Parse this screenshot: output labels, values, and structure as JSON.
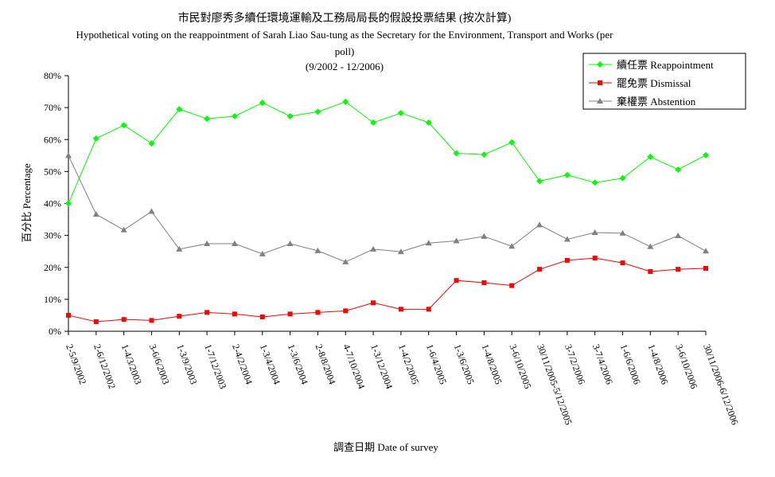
{
  "chart_data": {
    "type": "line",
    "title_cn": "市民對廖秀多續任環境運輸及工務局局長的假設投票結果 (按次計算)",
    "title_en_line1": "Hypothetical voting on the reappointment of Sarah Liao Sau-tung as the Secretary for the Environment, Transport and Works (per",
    "title_en_line2": "poll)",
    "subtitle": "(9/2002 - 12/2006)",
    "xlabel": "調查日期 Date of survey",
    "ylabel": "百分比 Percentage",
    "ylim": [
      0,
      80
    ],
    "yticks": [
      "0%",
      "10%",
      "20%",
      "30%",
      "40%",
      "50%",
      "60%",
      "70%",
      "80%"
    ],
    "legend_position": "top-right",
    "categories": [
      "2-5/9/2002",
      "2-6/12/2002",
      "1-4/3/2003",
      "3-6/6/2003",
      "1-3/9/2003",
      "1-7/12/2003",
      "2-4/2/2004",
      "1-3/4/2004",
      "1-3/6/2004",
      "2-8/8/2004",
      "4-7/10/2004",
      "1-3/12/2004",
      "1-4/2/2005",
      "1-6/4/2005",
      "1-3/6/2005",
      "1-4/8/2005",
      "3-6/10/2005",
      "30/11/2005-5/12/2005",
      "3-7/2/2006",
      "3-7/4/2006",
      "1-6/6/2006",
      "1-4/8/2006",
      "3-6/10/2006",
      "30/11/2006-6/12/2006"
    ],
    "series": [
      {
        "name": "續任票 Reappointment",
        "color": "#00ff00",
        "marker": "diamond",
        "values": [
          40,
          60.3,
          64.5,
          58.8,
          69.5,
          66.5,
          67.3,
          71.5,
          67.3,
          68.7,
          71.8,
          65.3,
          68.3,
          65.3,
          55.7,
          55.3,
          59.1,
          47,
          48.9,
          46.5,
          47.9,
          54.6,
          50.6,
          55.1
        ]
      },
      {
        "name": "罷免票 Dismissal",
        "color": "#ff0000",
        "marker": "square",
        "values": [
          5,
          3,
          3.7,
          3.4,
          4.7,
          5.9,
          5.4,
          4.5,
          5.4,
          5.9,
          6.4,
          8.9,
          6.9,
          6.9,
          15.9,
          15.2,
          14.3,
          19.4,
          22.2,
          22.9,
          21.4,
          18.7,
          19.4,
          19.7
        ]
      },
      {
        "name": "棄權票 Abstention",
        "color": "#808080",
        "marker": "triangle",
        "values": [
          55,
          36.6,
          31.7,
          37.5,
          25.7,
          27.4,
          27.4,
          24.2,
          27.4,
          25.2,
          21.7,
          25.7,
          24.9,
          27.6,
          28.3,
          29.7,
          26.6,
          33.3,
          28.8,
          30.9,
          30.7,
          26.5,
          29.9,
          25.1
        ]
      }
    ]
  }
}
